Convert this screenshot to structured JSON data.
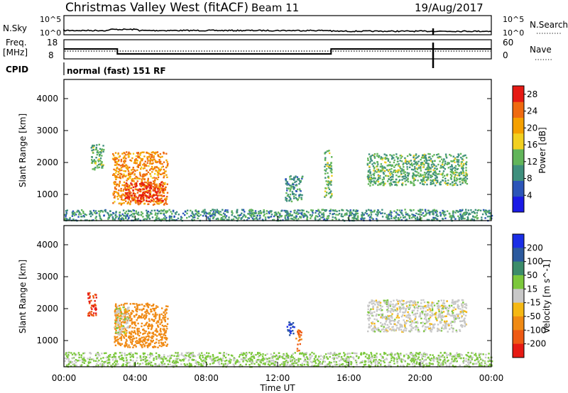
{
  "header": {
    "station": "Christmas Valley West (fitACF)",
    "beam": "Beam 11",
    "date": "19/Aug/2017"
  },
  "status_panels": {
    "nsky_label": "N.Sky",
    "nsearch_label": "N.Search",
    "nsky_ticks": [
      "10^5",
      "10^0"
    ],
    "nsearch_ticks": [
      "10^5",
      "10^0"
    ],
    "freq_label_1": "Freq.",
    "freq_label_2": "[MHz]",
    "freq_ticks": [
      "18",
      "8"
    ],
    "nave_label": "Nave",
    "nave_ticks": [
      "60",
      "0"
    ],
    "cpid_label": "CPID",
    "cpid_text": "normal (fast) 151 RF",
    "freq_line": {
      "t_hours": [
        0,
        3.0,
        3.0,
        15.0,
        15.0,
        24
      ],
      "mhz": [
        13.2,
        13.2,
        10.6,
        10.6,
        13.2,
        13.2
      ]
    }
  },
  "chart_data": [
    {
      "type": "heatmap",
      "title": "",
      "xlabel": "Time UT",
      "ylabel": "Slant Range [km]",
      "xlim_hours": [
        0,
        24
      ],
      "ylim_km": [
        180,
        4600
      ],
      "x_tick_labels": [
        "00:00",
        "04:00",
        "08:00",
        "12:00",
        "16:00",
        "20:00",
        "00:00"
      ],
      "y_ticks": [
        1000,
        2000,
        3000,
        4000
      ],
      "colorbar": {
        "label": "Power [dB]",
        "ticks": [
          4,
          8,
          12,
          16,
          20,
          24,
          28
        ],
        "range": [
          0,
          30
        ],
        "colors": [
          "#1a1ae6",
          "#2c55b8",
          "#3f8f7d",
          "#62b55a",
          "#f2d020",
          "#f5a000",
          "#ef6a10",
          "#e61a14"
        ]
      },
      "echo_regions": [
        {
          "t": [
            1.5,
            2.2
          ],
          "km": [
            1750,
            2600
          ],
          "level": 12
        },
        {
          "t": [
            2.7,
            5.8
          ],
          "km": [
            700,
            2350
          ],
          "level": 22
        },
        {
          "t": [
            3.4,
            5.6
          ],
          "km": [
            800,
            1400
          ],
          "level": 28
        },
        {
          "t": [
            12.4,
            13.4
          ],
          "km": [
            800,
            1600
          ],
          "level": 10
        },
        {
          "t": [
            14.6,
            15.0
          ],
          "km": [
            900,
            2400
          ],
          "level": 12
        },
        {
          "t": [
            17.0,
            22.6
          ],
          "km": [
            1300,
            2300
          ],
          "level": 12
        },
        {
          "t": [
            0,
            24
          ],
          "km": [
            200,
            550
          ],
          "level": 10
        }
      ]
    },
    {
      "type": "heatmap",
      "title": "",
      "xlabel": "Time UT",
      "ylabel": "Slant Range [km]",
      "xlim_hours": [
        0,
        24
      ],
      "ylim_km": [
        180,
        4600
      ],
      "x_tick_labels": [
        "00:00",
        "04:00",
        "08:00",
        "12:00",
        "16:00",
        "20:00",
        "00:00"
      ],
      "y_ticks": [
        1000,
        2000,
        3000,
        4000
      ],
      "colorbar": {
        "label": "Velocity [m s^-1]",
        "ticks": [
          "200",
          "100",
          "50",
          "15",
          "-15",
          "-50",
          "-100",
          "-200"
        ],
        "colors": [
          "#1a2ee6",
          "#2c5a9e",
          "#3c8c6a",
          "#7cc83c",
          "#c8c8c8",
          "#f5b814",
          "#f08a14",
          "#ee5a14",
          "#e61a14"
        ]
      },
      "echo_regions": [
        {
          "t": [
            1.3,
            1.8
          ],
          "km": [
            1800,
            2600
          ],
          "vel": -200
        },
        {
          "t": [
            2.8,
            5.8
          ],
          "km": [
            800,
            2200
          ],
          "vel": -80
        },
        {
          "t": [
            2.8,
            3.6
          ],
          "km": [
            1200,
            2100
          ],
          "vel": 0
        },
        {
          "t": [
            12.5,
            12.9
          ],
          "km": [
            1150,
            1600
          ],
          "vel": 200
        },
        {
          "t": [
            13.0,
            13.3
          ],
          "km": [
            700,
            1400
          ],
          "vel": -100
        },
        {
          "t": [
            17.0,
            22.6
          ],
          "km": [
            1300,
            2300
          ],
          "vel": 0
        },
        {
          "t": [
            0,
            24
          ],
          "km": [
            200,
            650
          ],
          "vel": 20
        }
      ]
    }
  ]
}
